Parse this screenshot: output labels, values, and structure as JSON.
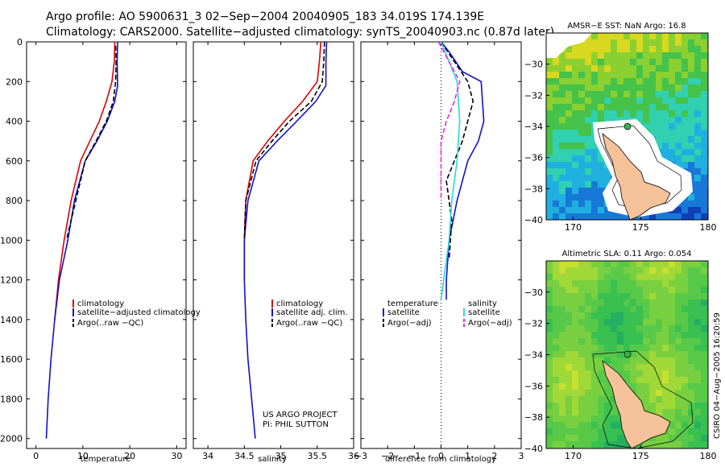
{
  "header": {
    "line1": "Argo profile: AO 5900631_3 02−Sep−2004 20040905_183 34.019S 174.139E",
    "line2": "Climatology: CARS2000. Satellite−adjusted climatology: synTS_20040903.nc (0.87d later)"
  },
  "side_stamp": "CSIRO 04−Aug−2005 16:20:59",
  "colors": {
    "red": "#dd0000",
    "blue": "#1010d0",
    "black": "#000000",
    "cyan": "#20dddd",
    "magenta": "#ee22ee",
    "land": "#f5c29a"
  },
  "chart_data": [
    {
      "type": "line",
      "id": "temperature",
      "xlabel": "temperature",
      "ylabel": "",
      "xlim": [
        -2,
        32
      ],
      "ylim": [
        2050,
        0
      ],
      "xticks": [
        0,
        10,
        20,
        30
      ],
      "yticks": [
        0,
        200,
        400,
        600,
        800,
        1000,
        1200,
        1400,
        1600,
        1800,
        2000
      ],
      "legend_position": "bottom-right",
      "legend": [
        "climatology",
        "satellite−adjusted climatology",
        "Argo(..raw −QC)"
      ],
      "series": [
        {
          "name": "climatology",
          "color": "red",
          "dash": false,
          "x": [
            16.8,
            16.7,
            16.2,
            15.0,
            13.5,
            11.5,
            9.5,
            7.5,
            6.0,
            4.8,
            4.0
          ],
          "y": [
            0,
            100,
            200,
            300,
            400,
            500,
            600,
            800,
            1000,
            1200,
            1400
          ]
        },
        {
          "name": "satellite−adjusted climatology",
          "color": "blue",
          "dash": false,
          "x": [
            17.4,
            17.3,
            17.4,
            16.8,
            15.2,
            13.0,
            10.5,
            8.2,
            6.8,
            5.0,
            4.0,
            3.2,
            2.6,
            2.2
          ],
          "y": [
            0,
            100,
            220,
            300,
            400,
            500,
            600,
            800,
            1000,
            1200,
            1400,
            1600,
            1800,
            2000
          ]
        },
        {
          "name": "Argo(..raw −QC)",
          "color": "black",
          "dash": true,
          "x": [
            17.0,
            17.1,
            17.0,
            16.5,
            15.0,
            12.8,
            10.5,
            8.5,
            6.5
          ],
          "y": [
            20,
            100,
            200,
            300,
            400,
            500,
            600,
            800,
            1000
          ]
        }
      ],
      "annotations": []
    },
    {
      "type": "line",
      "id": "salinity",
      "xlabel": "salinity",
      "ylabel": "",
      "xlim": [
        33.8,
        36.0
      ],
      "ylim": [
        2050,
        0
      ],
      "xticks": [
        34,
        34.5,
        35,
        35.5,
        36
      ],
      "yticks": [],
      "legend_position": "bottom-right",
      "legend": [
        "climatology",
        "satellite adj. clim.",
        "Argo(..raw −QC)"
      ],
      "series": [
        {
          "name": "climatology",
          "color": "red",
          "dash": false,
          "x": [
            35.55,
            35.53,
            35.5,
            35.3,
            35.05,
            34.82,
            34.62,
            34.52,
            34.5,
            34.5
          ],
          "y": [
            0,
            100,
            200,
            300,
            400,
            500,
            600,
            800,
            1000,
            1200
          ]
        },
        {
          "name": "satellite adj. clim.",
          "color": "blue",
          "dash": false,
          "x": [
            35.63,
            35.62,
            35.62,
            35.48,
            35.22,
            34.95,
            34.7,
            34.55,
            34.5,
            34.5,
            34.52,
            34.55,
            34.6,
            34.65
          ],
          "y": [
            0,
            100,
            220,
            300,
            400,
            500,
            600,
            800,
            1000,
            1200,
            1400,
            1600,
            1800,
            2000
          ]
        },
        {
          "name": "Argo(..raw −QC)",
          "color": "black",
          "dash": true,
          "x": [
            35.6,
            35.59,
            35.57,
            35.42,
            35.12,
            34.88,
            34.66,
            34.52,
            34.5
          ],
          "y": [
            0,
            100,
            200,
            300,
            400,
            500,
            600,
            800,
            1000
          ]
        }
      ],
      "annotations": [
        "US ARGO PROJECT",
        "PI: PHIL SUTTON"
      ]
    },
    {
      "type": "line",
      "id": "difference",
      "xlabel": "difference from climatology",
      "ylabel": "",
      "xlim": [
        -3,
        3
      ],
      "ylim": [
        2050,
        0
      ],
      "xticks": [
        -3,
        -2,
        -1,
        0,
        1,
        2,
        3
      ],
      "yticks": [],
      "legend_position": "bottom",
      "legend": [
        "temperature",
        "satellite",
        "Argo(−adj)",
        "salinity",
        "satellite",
        "Argo(−adj)"
      ],
      "series": [
        {
          "name": "temperature satellite",
          "color": "blue",
          "dash": false,
          "x": [
            0.0,
            0.3,
            0.8,
            1.5,
            1.6,
            1.4,
            1.0,
            0.6,
            0.3,
            0.2,
            0.2
          ],
          "y": [
            0,
            50,
            150,
            200,
            400,
            500,
            600,
            800,
            1000,
            1200,
            1300
          ]
        },
        {
          "name": "temperature Argo(−adj)",
          "color": "black",
          "dash": true,
          "x": [
            0.0,
            0.5,
            1.0,
            1.2,
            0.8,
            0.5,
            0.2,
            0.4,
            0.3
          ],
          "y": [
            0,
            100,
            200,
            300,
            500,
            600,
            700,
            900,
            1100
          ]
        },
        {
          "name": "salinity satellite",
          "color": "cyan",
          "dash": false,
          "x": [
            0.0,
            0.3,
            0.6,
            0.7,
            0.6,
            0.4,
            0.3,
            0.1,
            0.0
          ],
          "y": [
            0,
            100,
            200,
            400,
            600,
            800,
            1000,
            1200,
            1300
          ]
        },
        {
          "name": "salinity Argo(−adj)",
          "color": "magenta",
          "dash": true,
          "x": [
            -0.1,
            0.3,
            0.7,
            0.5,
            0.2,
            0.0,
            0.0,
            0.0
          ],
          "y": [
            0,
            100,
            200,
            300,
            400,
            500,
            600,
            800
          ]
        }
      ],
      "annotations": []
    },
    {
      "type": "heatmap",
      "id": "sst-map",
      "title": "AMSR−E SST: NaN Argo: 16.8",
      "xlim": [
        168,
        180
      ],
      "ylim": [
        -40,
        -28
      ],
      "xticks": [
        170,
        175,
        180
      ],
      "yticks": [
        -30,
        -32,
        -34,
        -36,
        -38,
        -40
      ],
      "argo_point": [
        174.139,
        -34.019
      ]
    },
    {
      "type": "heatmap",
      "id": "sla-map",
      "title": "Altimetric SLA: 0.11 Argo: 0.054",
      "xlim": [
        168,
        180
      ],
      "ylim": [
        -40,
        -28
      ],
      "xticks": [
        170,
        175,
        180
      ],
      "yticks": [
        -30,
        -32,
        -34,
        -36,
        -38,
        -40
      ],
      "argo_point": [
        174.139,
        -34.019
      ]
    }
  ]
}
